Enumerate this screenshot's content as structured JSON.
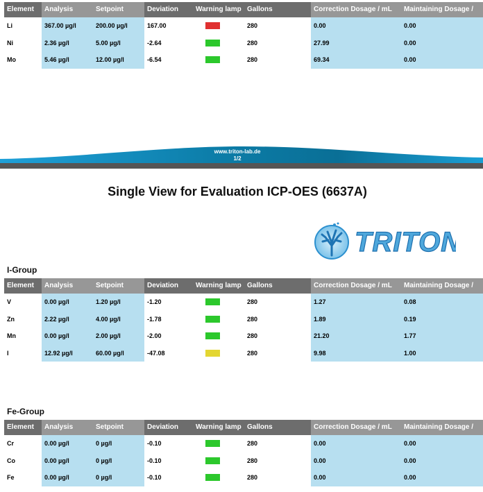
{
  "page": {
    "title": "Single View for Evaluation ICP-OES (6637A)",
    "footer_url": "www.triton-lab.de",
    "footer_page": "1/2",
    "logo_text": "TRITON"
  },
  "headers": [
    "Element",
    "Analysis",
    "Setpoint",
    "Deviation",
    "Warning lamp",
    "Gallons",
    "Correction Dosage / mL",
    "Maintaining Dosage /"
  ],
  "colors": {
    "green": "#2cc82c",
    "red": "#e03030",
    "yellow": "#e3d632",
    "header_dark": "#6d6d6d",
    "header_light": "#979797",
    "cell_blue": "#b7dff0",
    "brand_blue": "#1e8fcf"
  },
  "groups": [
    {
      "label": "",
      "rows": [
        {
          "element": "Li",
          "analysis": "367.00 µg/l",
          "setpoint": "200.00 µg/l",
          "deviation": "167.00",
          "lamp": "red",
          "gallons": "280",
          "correction": "0.00",
          "maintaining": "0.00"
        },
        {
          "element": "Ni",
          "analysis": "2.36 µg/l",
          "setpoint": "5.00 µg/l",
          "deviation": "-2.64",
          "lamp": "green",
          "gallons": "280",
          "correction": "27.99",
          "maintaining": "0.00"
        },
        {
          "element": "Mo",
          "analysis": "5.46 µg/l",
          "setpoint": "12.00 µg/l",
          "deviation": "-6.54",
          "lamp": "green",
          "gallons": "280",
          "correction": "69.34",
          "maintaining": "0.00"
        }
      ]
    },
    {
      "label": "I-Group",
      "rows": [
        {
          "element": "V",
          "analysis": "0.00 µg/l",
          "setpoint": "1.20 µg/l",
          "deviation": "-1.20",
          "lamp": "green",
          "gallons": "280",
          "correction": "1.27",
          "maintaining": "0.08"
        },
        {
          "element": "Zn",
          "analysis": "2.22 µg/l",
          "setpoint": "4.00 µg/l",
          "deviation": "-1.78",
          "lamp": "green",
          "gallons": "280",
          "correction": "1.89",
          "maintaining": "0.19"
        },
        {
          "element": "Mn",
          "analysis": "0.00 µg/l",
          "setpoint": "2.00 µg/l",
          "deviation": "-2.00",
          "lamp": "green",
          "gallons": "280",
          "correction": "21.20",
          "maintaining": "1.77"
        },
        {
          "element": "I",
          "analysis": "12.92 µg/l",
          "setpoint": "60.00 µg/l",
          "deviation": "-47.08",
          "lamp": "yellow",
          "gallons": "280",
          "correction": "9.98",
          "maintaining": "1.00"
        }
      ]
    },
    {
      "label": "Fe-Group",
      "rows": [
        {
          "element": "Cr",
          "analysis": "0.00 µg/l",
          "setpoint": "0 µg/l",
          "deviation": "-0.10",
          "lamp": "green",
          "gallons": "280",
          "correction": "0.00",
          "maintaining": "0.00"
        },
        {
          "element": "Co",
          "analysis": "0.00 µg/l",
          "setpoint": "0 µg/l",
          "deviation": "-0.10",
          "lamp": "green",
          "gallons": "280",
          "correction": "0.00",
          "maintaining": "0.00"
        },
        {
          "element": "Fe",
          "analysis": "0.00 µg/l",
          "setpoint": "0 µg/l",
          "deviation": "-0.10",
          "lamp": "green",
          "gallons": "280",
          "correction": "0.00",
          "maintaining": "0.00"
        }
      ]
    }
  ]
}
